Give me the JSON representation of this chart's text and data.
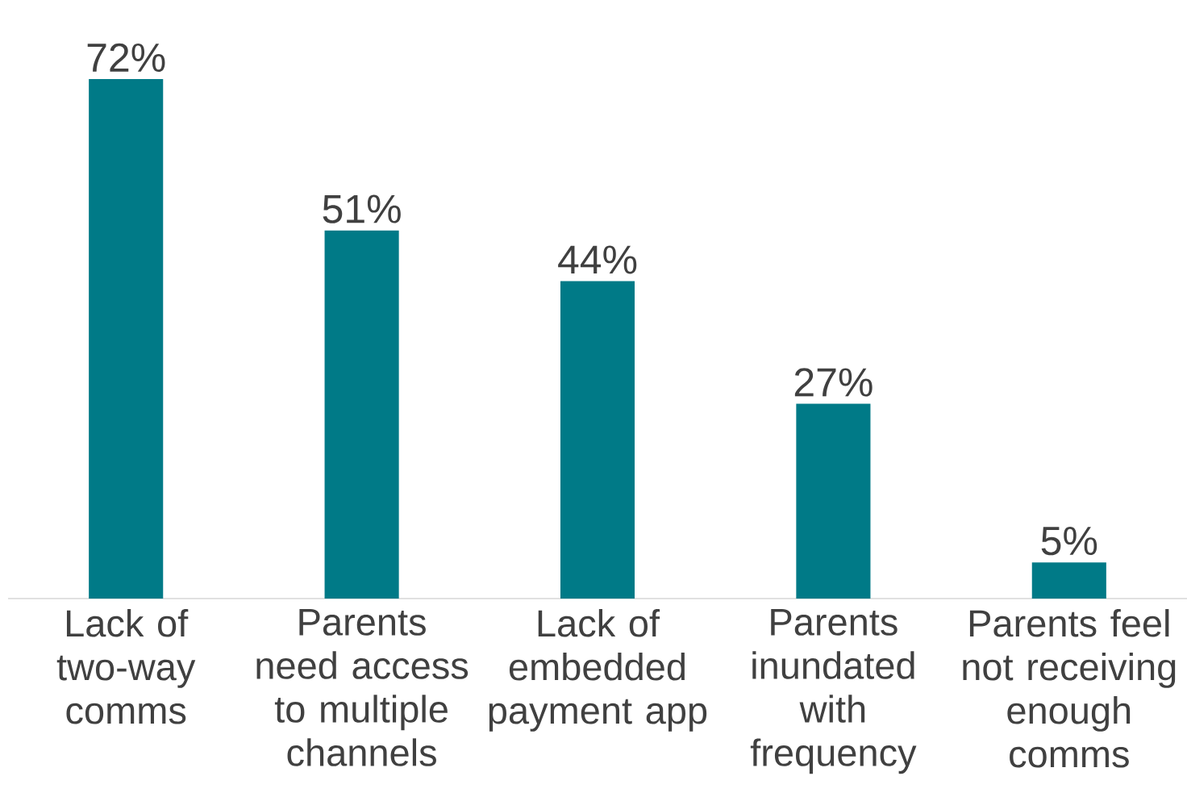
{
  "chart_data": {
    "type": "bar",
    "categories": [
      "Lack of two-way comms",
      "Parents need access to multiple channels",
      "Lack of embedded payment app",
      "Parents inundated with frequency",
      "Parents feel not receiving enough comms"
    ],
    "values": [
      72,
      51,
      44,
      27,
      5
    ],
    "value_labels": [
      "72%",
      "51%",
      "44%",
      "27%",
      "5%"
    ],
    "color": "#007a87"
  }
}
